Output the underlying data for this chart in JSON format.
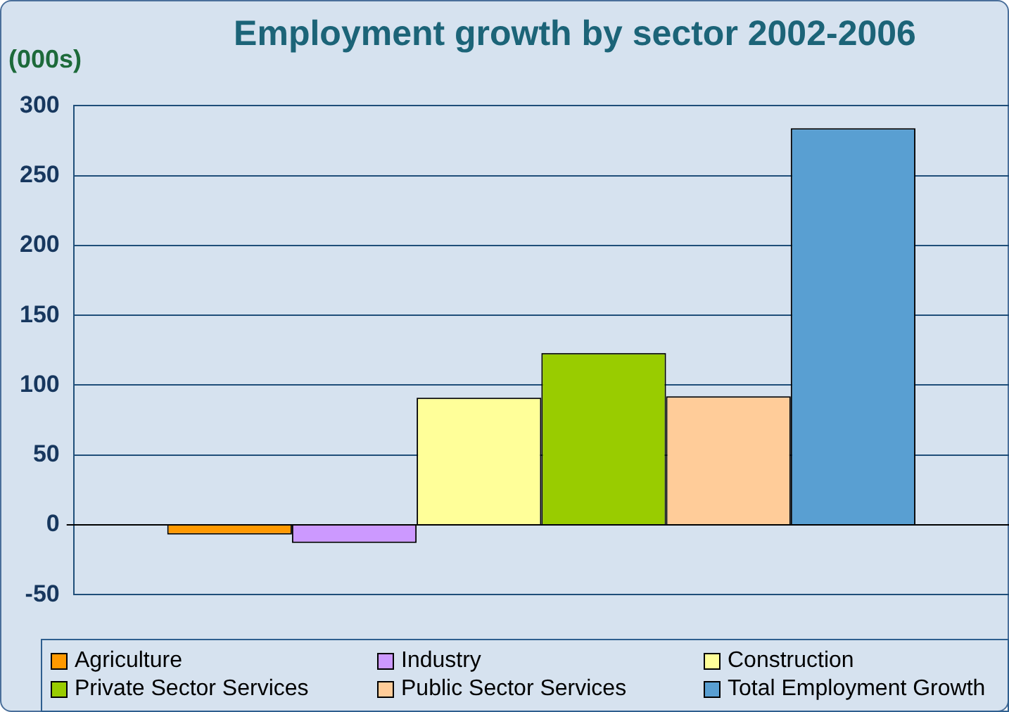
{
  "chart_data": {
    "type": "bar",
    "title": "Employment growth by sector 2002-2006",
    "ylabel": "(000s)",
    "categories": [
      null
    ],
    "series": [
      {
        "name": "Agriculture",
        "color": "#ff9900",
        "values": [
          -7
        ]
      },
      {
        "name": "Industry",
        "color": "#cc99ff",
        "values": [
          -13
        ]
      },
      {
        "name": "Construction",
        "color": "#ffff99",
        "values": [
          91
        ]
      },
      {
        "name": "Private Sector Services",
        "color": "#99cc00",
        "values": [
          123
        ]
      },
      {
        "name": "Public Sector Services",
        "color": "#ffcc99",
        "values": [
          92
        ]
      },
      {
        "name": "Total Employment Growth",
        "color": "#599fd2",
        "values": [
          284
        ]
      }
    ],
    "ylim": [
      -50,
      300
    ],
    "yticks": [
      -50,
      0,
      50,
      100,
      150,
      200,
      250,
      300
    ],
    "grid": "y",
    "legend": "bottom"
  }
}
